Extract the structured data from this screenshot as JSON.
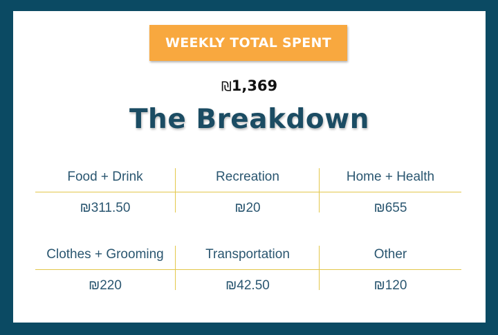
{
  "header": {
    "badge_label": "WEEKLY TOTAL SPENT",
    "total_currency": "₪",
    "total_amount": "1,369",
    "title": "The Breakdown"
  },
  "categories": [
    {
      "label": "Food + Drink",
      "amount": "₪311.50"
    },
    {
      "label": "Recreation",
      "amount": "₪20"
    },
    {
      "label": "Home + Health",
      "amount": "₪655"
    },
    {
      "label": "Clothes + Grooming",
      "amount": "₪220"
    },
    {
      "label": "Transportation",
      "amount": "₪42.50"
    },
    {
      "label": "Other",
      "amount": "₪120"
    }
  ],
  "colors": {
    "frame": "#0b4a63",
    "badge": "#f8a83f",
    "title": "#1b4c63",
    "text": "#2a5670",
    "divider": "#e3c74a"
  }
}
